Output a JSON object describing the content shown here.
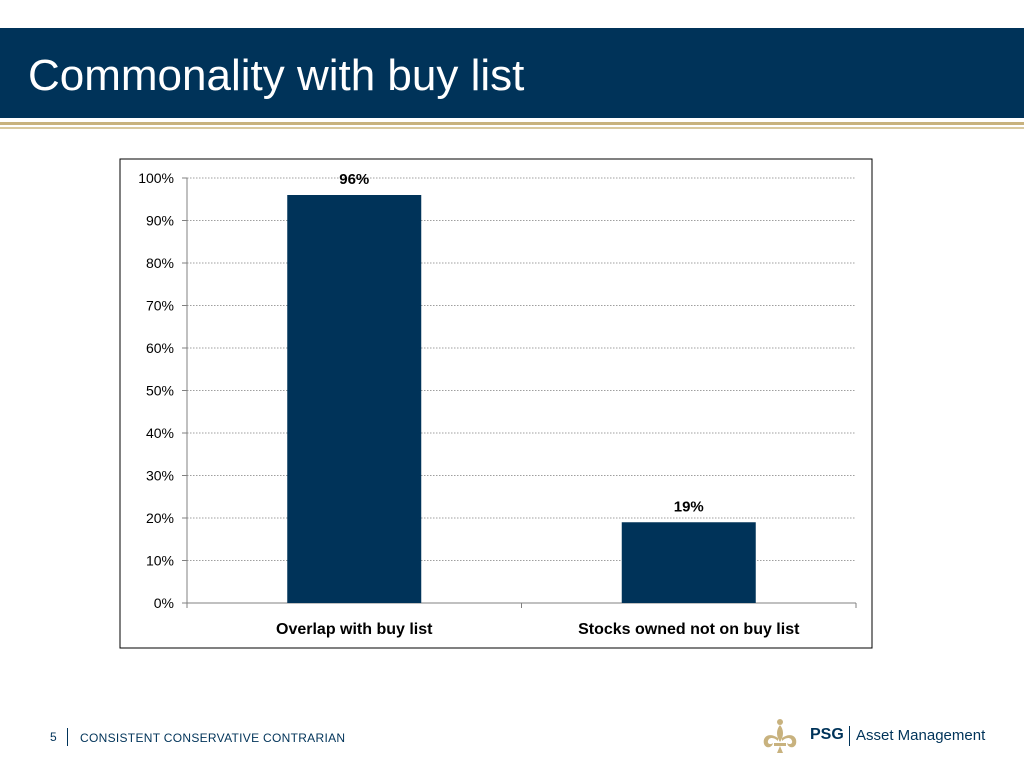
{
  "slide": {
    "title": "Commonality with buy list",
    "page_number": "5",
    "footer": "CONSISTENT CONSERVATIVE CONTRARIAN",
    "logo_brand": "PSG",
    "logo_tagline": "Asset Management"
  },
  "colors": {
    "header": "#003359",
    "bar": "#003359",
    "accent_gold": "#c8b27e"
  },
  "icons": {
    "logo": "fleur-de-lis-icon"
  },
  "chart_data": {
    "type": "bar",
    "categories": [
      "Overlap with buy list",
      "Stocks owned not on buy list"
    ],
    "values": [
      96,
      19
    ],
    "data_labels": [
      "96%",
      "19%"
    ],
    "ylim": [
      0,
      100
    ],
    "yticks": [
      0,
      10,
      20,
      30,
      40,
      50,
      60,
      70,
      80,
      90,
      100
    ],
    "ytick_labels": [
      "0%",
      "10%",
      "20%",
      "30%",
      "40%",
      "50%",
      "60%",
      "70%",
      "80%",
      "90%",
      "100%"
    ],
    "grid": true,
    "legend": "none"
  }
}
